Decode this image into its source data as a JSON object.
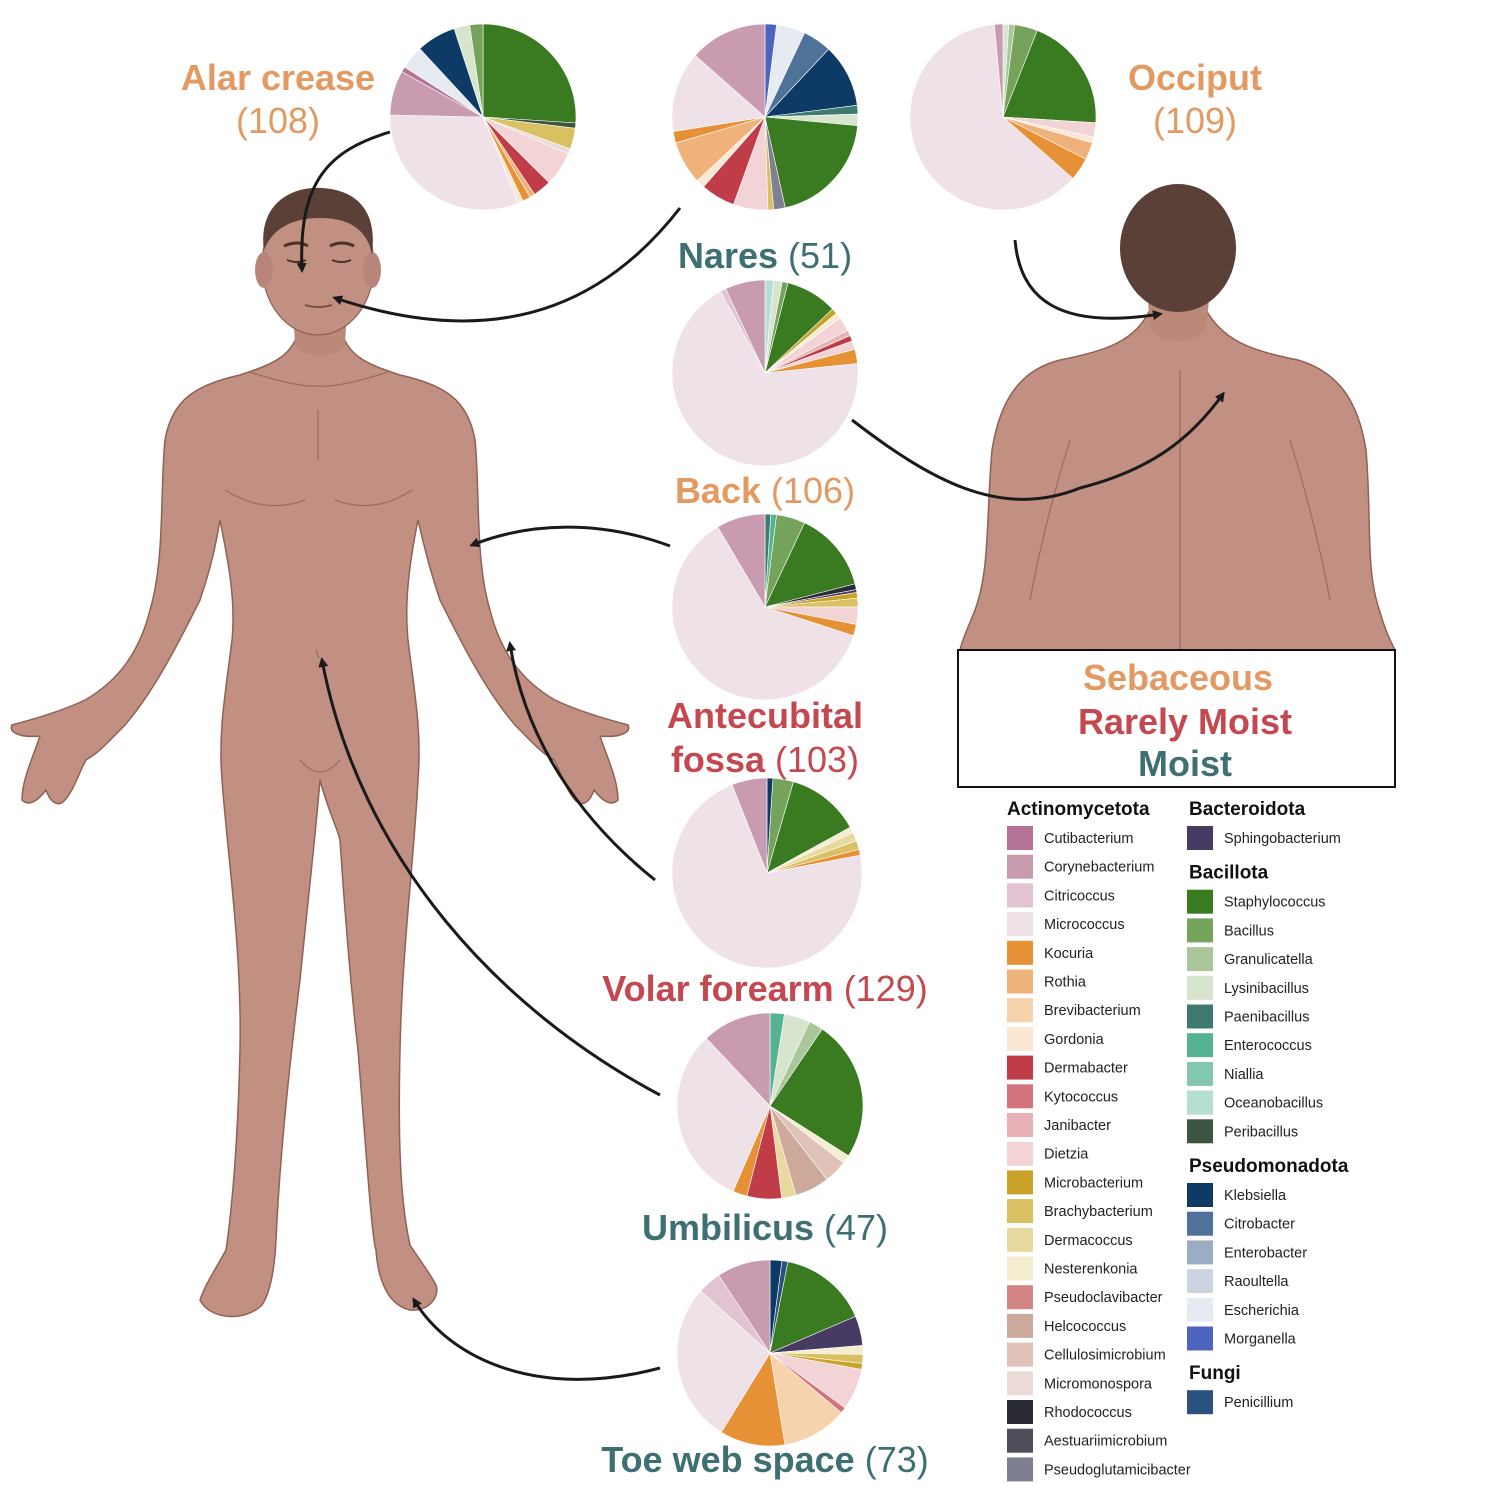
{
  "categories": {
    "sebaceous": {
      "label": "Sebaceous",
      "color": "#e39a62"
    },
    "rarely_moist": {
      "label": "Rarely Moist",
      "color": "#c4484f"
    },
    "moist": {
      "label": "Moist",
      "color": "#3e6f72"
    }
  },
  "legend": {
    "groups": [
      {
        "title": "Actinomycetota",
        "items": [
          {
            "name": "Cutibacterium",
            "color": "#b47396"
          },
          {
            "name": "Corynebacterium",
            "color": "#c99bb0"
          },
          {
            "name": "Citricoccus",
            "color": "#e1c3d2"
          },
          {
            "name": "Micrococcus",
            "color": "#eee1e8"
          },
          {
            "name": "Kocuria",
            "color": "#e79136"
          },
          {
            "name": "Rothia",
            "color": "#efb27a"
          },
          {
            "name": "Brevibacterium",
            "color": "#f6d3ad"
          },
          {
            "name": "Gordonia",
            "color": "#fbe8d4"
          },
          {
            "name": "Dermabacter",
            "color": "#c03c48"
          },
          {
            "name": "Kytococcus",
            "color": "#d3747d"
          },
          {
            "name": "Janibacter",
            "color": "#e8b1b5"
          },
          {
            "name": "Dietzia",
            "color": "#f3d4d6"
          },
          {
            "name": "Microbacterium",
            "color": "#c9a22a"
          },
          {
            "name": "Brachybacterium",
            "color": "#d9c063"
          },
          {
            "name": "Dermacoccus",
            "color": "#e8d99f"
          },
          {
            "name": "Nesterenkonia",
            "color": "#f4edd0"
          },
          {
            "name": "Pseudoclavibacter",
            "color": "#d38484"
          },
          {
            "name": "Helcococcus",
            "color": "#cda99c"
          },
          {
            "name": "Cellulosimicrobium",
            "color": "#dfc2b8"
          },
          {
            "name": "Micromonospora",
            "color": "#ecdcd7"
          },
          {
            "name": "Rhodococcus",
            "color": "#2a2a33"
          },
          {
            "name": "Aestuariimicrobium",
            "color": "#4f4f5c"
          },
          {
            "name": "Pseudoglutamicibacter",
            "color": "#7e7f91"
          }
        ]
      },
      {
        "title": "Bacteroidota",
        "items": [
          {
            "name": "Sphingobacterium",
            "color": "#473a63"
          }
        ]
      },
      {
        "title": "Bacillota",
        "items": [
          {
            "name": "Staphylococcus",
            "color": "#3a7a20"
          },
          {
            "name": "Bacillus",
            "color": "#76a35c"
          },
          {
            "name": "Granulicatella",
            "color": "#a9c79a"
          },
          {
            "name": "Lysinibacillus",
            "color": "#d7e5cf"
          },
          {
            "name": "Paenibacillus",
            "color": "#3c7b6d"
          },
          {
            "name": "Enterococcus",
            "color": "#55b292"
          },
          {
            "name": "Niallia",
            "color": "#83c7b0"
          },
          {
            "name": "Oceanobacillus",
            "color": "#b5dfd2"
          },
          {
            "name": "Peribacillus",
            "color": "#3c5543"
          }
        ]
      },
      {
        "title": "Pseudomonadota",
        "items": [
          {
            "name": "Klebsiella",
            "color": "#0d3b66"
          },
          {
            "name": "Citrobacter",
            "color": "#4f7398"
          },
          {
            "name": "Enterobacter",
            "color": "#9badc4"
          },
          {
            "name": "Raoultella",
            "color": "#cbd4e0"
          },
          {
            "name": "Escherichia",
            "color": "#e6ebf1"
          },
          {
            "name": "Morganella",
            "color": "#4d64bf"
          }
        ]
      },
      {
        "title": "Fungi",
        "items": [
          {
            "name": "Penicillium",
            "color": "#2b527e"
          }
        ]
      }
    ]
  },
  "sites": [
    {
      "id": "alar",
      "name": "Alar crease",
      "count": "(108)",
      "category": "sebaceous",
      "composition": [
        {
          "genus": "Staphylococcus",
          "fraction": 0.285
        },
        {
          "genus": "Peribacillus",
          "fraction": 0.01
        },
        {
          "genus": "Brachybacterium",
          "fraction": 0.04
        },
        {
          "genus": "Micromonospora",
          "fraction": 0.01
        },
        {
          "genus": "Dietzia",
          "fraction": 0.065
        },
        {
          "genus": "Dermabacter",
          "fraction": 0.035
        },
        {
          "genus": "Rothia",
          "fraction": 0.01
        },
        {
          "genus": "Kocuria",
          "fraction": 0.015
        },
        {
          "genus": "Gordonia",
          "fraction": 0.01
        },
        {
          "genus": "Micrococcus",
          "fraction": 0.345
        },
        {
          "genus": "Corynebacterium",
          "fraction": 0.085
        },
        {
          "genus": "Cutibacterium",
          "fraction": 0.01
        },
        {
          "genus": "Escherichia",
          "fraction": 0.045
        },
        {
          "genus": "Klebsiella",
          "fraction": 0.075
        },
        {
          "genus": "Lysinibacillus",
          "fraction": 0.03
        },
        {
          "genus": "Bacillus",
          "fraction": 0.025
        }
      ]
    },
    {
      "id": "nares",
      "name": "Nares",
      "count": "(51)",
      "category": "moist",
      "composition": [
        {
          "genus": "Morganella",
          "fraction": 0.02
        },
        {
          "genus": "Escherichia",
          "fraction": 0.05
        },
        {
          "genus": "Citrobacter",
          "fraction": 0.05
        },
        {
          "genus": "Klebsiella",
          "fraction": 0.11
        },
        {
          "genus": "Paenibacillus",
          "fraction": 0.015
        },
        {
          "genus": "Lysinibacillus",
          "fraction": 0.02
        },
        {
          "genus": "Staphylococcus",
          "fraction": 0.2
        },
        {
          "genus": "Pseudoglutamicibacter",
          "fraction": 0.02
        },
        {
          "genus": "Brachybacterium",
          "fraction": 0.01
        },
        {
          "genus": "Dietzia",
          "fraction": 0.06
        },
        {
          "genus": "Dermabacter",
          "fraction": 0.06
        },
        {
          "genus": "Gordonia",
          "fraction": 0.015
        },
        {
          "genus": "Rothia",
          "fraction": 0.075
        },
        {
          "genus": "Kocuria",
          "fraction": 0.02
        },
        {
          "genus": "Micrococcus",
          "fraction": 0.14
        },
        {
          "genus": "Corynebacterium",
          "fraction": 0.135
        }
      ]
    },
    {
      "id": "occiput",
      "name": "Occiput",
      "count": "(109)",
      "category": "sebaceous",
      "composition": [
        {
          "genus": "Lysinibacillus",
          "fraction": 0.01
        },
        {
          "genus": "Granulicatella",
          "fraction": 0.01
        },
        {
          "genus": "Bacillus",
          "fraction": 0.04
        },
        {
          "genus": "Staphylococcus",
          "fraction": 0.2
        },
        {
          "genus": "Dietzia",
          "fraction": 0.025
        },
        {
          "genus": "Gordonia",
          "fraction": 0.01
        },
        {
          "genus": "Rothia",
          "fraction": 0.03
        },
        {
          "genus": "Kocuria",
          "fraction": 0.04
        },
        {
          "genus": "Micrococcus",
          "fraction": 0.62
        },
        {
          "genus": "Corynebacterium",
          "fraction": 0.015
        }
      ]
    },
    {
      "id": "back",
      "name": "Back",
      "count": "(106)",
      "category": "sebaceous",
      "composition": [
        {
          "genus": "Oceanobacillus",
          "fraction": 0.015
        },
        {
          "genus": "Lysinibacillus",
          "fraction": 0.015
        },
        {
          "genus": "Bacillus",
          "fraction": 0.01
        },
        {
          "genus": "Staphylococcus",
          "fraction": 0.09
        },
        {
          "genus": "Microbacterium",
          "fraction": 0.01
        },
        {
          "genus": "Nesterenkonia",
          "fraction": 0.01
        },
        {
          "genus": "Dietzia",
          "fraction": 0.025
        },
        {
          "genus": "Janibacter",
          "fraction": 0.01
        },
        {
          "genus": "Dermabacter",
          "fraction": 0.01
        },
        {
          "genus": "Dietzia",
          "fraction": 0.015
        },
        {
          "genus": "Kocuria",
          "fraction": 0.025
        },
        {
          "genus": "Micrococcus",
          "fraction": 0.69
        },
        {
          "genus": "Citricoccus",
          "fraction": 0.01
        },
        {
          "genus": "Corynebacterium",
          "fraction": 0.07
        }
      ]
    },
    {
      "id": "antecubital",
      "name": "Antecubital fossa",
      "count": "(103)",
      "category": "rarely_moist",
      "composition": [
        {
          "genus": "Paenibacillus",
          "fraction": 0.01
        },
        {
          "genus": "Enterococcus",
          "fraction": 0.01
        },
        {
          "genus": "Bacillus",
          "fraction": 0.05
        },
        {
          "genus": "Staphylococcus",
          "fraction": 0.14
        },
        {
          "genus": "Rhodococcus",
          "fraction": 0.01
        },
        {
          "genus": "Sphingobacterium",
          "fraction": 0.005
        },
        {
          "genus": "Microbacterium",
          "fraction": 0.01
        },
        {
          "genus": "Brachybacterium",
          "fraction": 0.015
        },
        {
          "genus": "Dietzia",
          "fraction": 0.03
        },
        {
          "genus": "Kocuria",
          "fraction": 0.02
        },
        {
          "genus": "Micrococcus",
          "fraction": 0.615
        },
        {
          "genus": "Corynebacterium",
          "fraction": 0.085
        }
      ]
    },
    {
      "id": "volar",
      "name": "Volar forearm",
      "count": "(129)",
      "category": "rarely_moist",
      "composition": [
        {
          "genus": "Klebsiella",
          "fraction": 0.01
        },
        {
          "genus": "Bacillus",
          "fraction": 0.035
        },
        {
          "genus": "Staphylococcus",
          "fraction": 0.125
        },
        {
          "genus": "Nesterenkonia",
          "fraction": 0.01
        },
        {
          "genus": "Dermacoccus",
          "fraction": 0.015
        },
        {
          "genus": "Brachybacterium",
          "fraction": 0.015
        },
        {
          "genus": "Kocuria",
          "fraction": 0.01
        },
        {
          "genus": "Micrococcus",
          "fraction": 0.72
        },
        {
          "genus": "Corynebacterium",
          "fraction": 0.06
        }
      ]
    },
    {
      "id": "umbilicus",
      "name": "Umbilicus",
      "count": "(47)",
      "category": "moist",
      "composition": [
        {
          "genus": "Enterococcus",
          "fraction": 0.025
        },
        {
          "genus": "Lysinibacillus",
          "fraction": 0.045
        },
        {
          "genus": "Granulicatella",
          "fraction": 0.025
        },
        {
          "genus": "Staphylococcus",
          "fraction": 0.245
        },
        {
          "genus": "Nesterenkonia",
          "fraction": 0.015
        },
        {
          "genus": "Cellulosimicrobium",
          "fraction": 0.04
        },
        {
          "genus": "Helcococcus",
          "fraction": 0.06
        },
        {
          "genus": "Dermacoccus",
          "fraction": 0.025
        },
        {
          "genus": "Dermabacter",
          "fraction": 0.06
        },
        {
          "genus": "Kocuria",
          "fraction": 0.025
        },
        {
          "genus": "Micrococcus",
          "fraction": 0.315
        },
        {
          "genus": "Corynebacterium",
          "fraction": 0.12
        }
      ]
    },
    {
      "id": "toe",
      "name": "Toe web space",
      "count": "(73)",
      "category": "moist",
      "composition": [
        {
          "genus": "Klebsiella",
          "fraction": 0.02
        },
        {
          "genus": "Penicillium",
          "fraction": 0.01
        },
        {
          "genus": "Staphylococcus",
          "fraction": 0.15
        },
        {
          "genus": "Sphingobacterium",
          "fraction": 0.05
        },
        {
          "genus": "Nesterenkonia",
          "fraction": 0.015
        },
        {
          "genus": "Brachybacterium",
          "fraction": 0.015
        },
        {
          "genus": "Microbacterium",
          "fraction": 0.01
        },
        {
          "genus": "Dietzia",
          "fraction": 0.07
        },
        {
          "genus": "Kytococcus",
          "fraction": 0.01
        },
        {
          "genus": "Brevibacterium",
          "fraction": 0.11
        },
        {
          "genus": "Kocuria",
          "fraction": 0.11
        },
        {
          "genus": "Micrococcus",
          "fraction": 0.27
        },
        {
          "genus": "Citricoccus",
          "fraction": 0.04
        },
        {
          "genus": "Corynebacterium",
          "fraction": 0.09
        }
      ]
    }
  ],
  "chart_data": {
    "type": "pie",
    "note_free": "",
    "series": []
  }
}
